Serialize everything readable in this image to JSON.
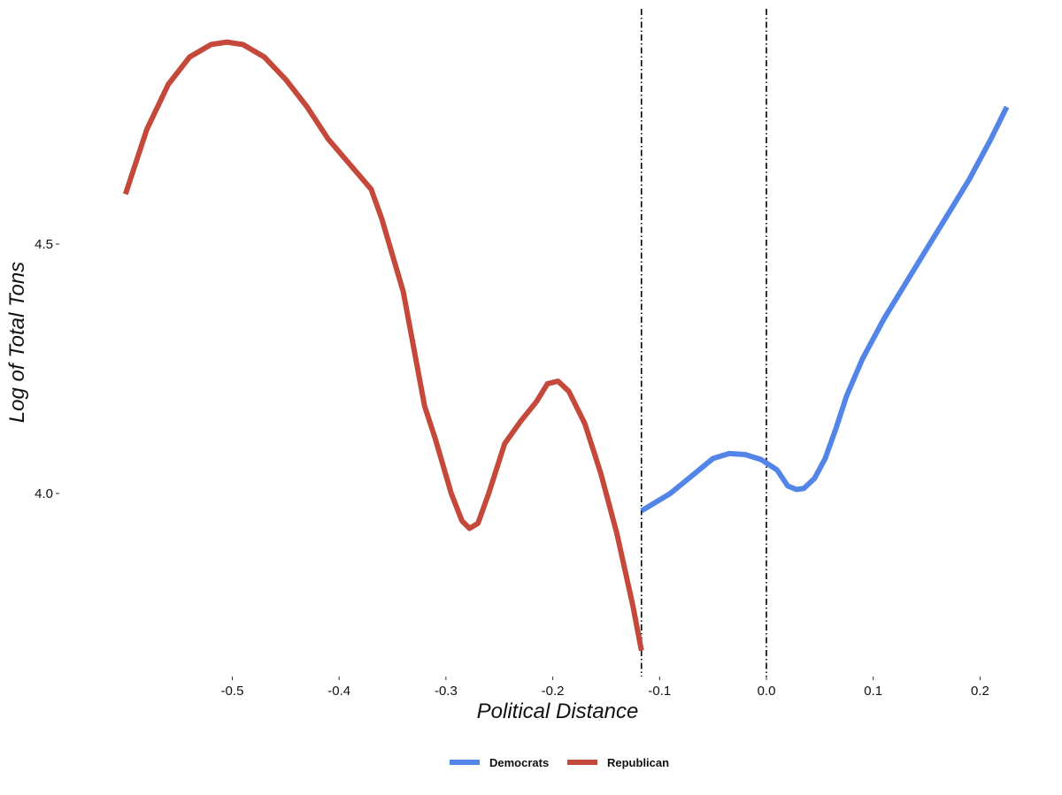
{
  "chart_data": {
    "type": "line",
    "title": "",
    "xlabel": "Political Distance",
    "ylabel": "Log of Total Tons",
    "xlim": [
      -0.6,
      0.23
    ],
    "ylim": [
      3.65,
      4.93
    ],
    "x_ticks": [
      -0.5,
      -0.4,
      -0.3,
      -0.2,
      -0.1,
      0.0,
      0.1,
      0.2
    ],
    "x_tick_labels": [
      "-0.5",
      "-0.4",
      "-0.3",
      "-0.2",
      "-0.1",
      "0.0",
      "0.1",
      "0.2"
    ],
    "y_ticks": [
      4.0,
      4.5
    ],
    "y_tick_labels": [
      "4.0",
      "4.5"
    ],
    "grid": false,
    "legend_position": "bottom",
    "vlines": [
      {
        "x": -0.117,
        "style": "dash-dot"
      },
      {
        "x": 0.0,
        "style": "dash-dot"
      }
    ],
    "series": [
      {
        "name": "Democrats",
        "color": "#5385e8",
        "x": [
          -0.117,
          -0.09,
          -0.07,
          -0.05,
          -0.035,
          -0.02,
          -0.005,
          0.01,
          0.02,
          0.028,
          0.035,
          0.045,
          0.055,
          0.065,
          0.075,
          0.09,
          0.11,
          0.13,
          0.15,
          0.17,
          0.19,
          0.21,
          0.225
        ],
        "values": [
          3.965,
          4.0,
          4.035,
          4.07,
          4.08,
          4.078,
          4.068,
          4.047,
          4.015,
          4.008,
          4.01,
          4.03,
          4.07,
          4.13,
          4.195,
          4.27,
          4.35,
          4.42,
          4.49,
          4.56,
          4.63,
          4.71,
          4.775
        ]
      },
      {
        "name": "Republican",
        "color": "#c4493a",
        "x": [
          -0.6,
          -0.58,
          -0.56,
          -0.54,
          -0.52,
          -0.505,
          -0.49,
          -0.47,
          -0.45,
          -0.43,
          -0.41,
          -0.39,
          -0.37,
          -0.36,
          -0.34,
          -0.32,
          -0.31,
          -0.295,
          -0.285,
          -0.278,
          -0.27,
          -0.26,
          -0.245,
          -0.23,
          -0.215,
          -0.205,
          -0.195,
          -0.185,
          -0.17,
          -0.155,
          -0.14,
          -0.125,
          -0.117
        ],
        "values": [
          4.6,
          4.73,
          4.82,
          4.875,
          4.9,
          4.905,
          4.9,
          4.875,
          4.83,
          4.775,
          4.71,
          4.66,
          4.61,
          4.55,
          4.405,
          4.175,
          4.11,
          4.0,
          3.945,
          3.93,
          3.94,
          4.0,
          4.1,
          4.145,
          4.185,
          4.22,
          4.225,
          4.205,
          4.14,
          4.04,
          3.92,
          3.775,
          3.685
        ]
      }
    ]
  }
}
